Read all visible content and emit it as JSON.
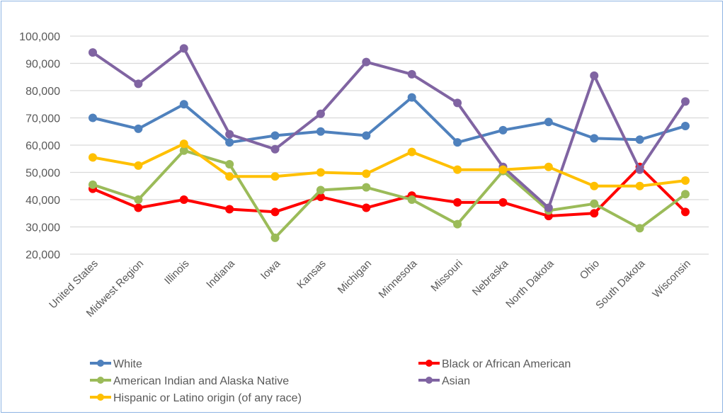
{
  "chart_data": {
    "type": "line",
    "title": "",
    "xlabel": "",
    "ylabel": "",
    "ylim": [
      20000,
      100000
    ],
    "yticks": [
      "20,000",
      "30,000",
      "40,000",
      "50,000",
      "60,000",
      "70,000",
      "80,000",
      "90,000",
      "100,000"
    ],
    "grid": true,
    "legend_position": "bottom",
    "categories": [
      "United States",
      "Midwest Region",
      "Illinois",
      "Indiana",
      "Iowa",
      "Kansas",
      "Michigan",
      "Minnesota",
      "Missouri",
      "Nebraska",
      "North Dakota",
      "Ohio",
      "South Dakota",
      "Wisconsin"
    ],
    "series": [
      {
        "name": "White",
        "color": "#4f81bd",
        "values": [
          70000,
          66000,
          75000,
          61000,
          63500,
          65000,
          63500,
          77500,
          61000,
          65500,
          68500,
          62500,
          62000,
          67000
        ]
      },
      {
        "name": "Black or African American",
        "color": "#ff0000",
        "values": [
          44000,
          37000,
          40000,
          36500,
          35500,
          41000,
          37000,
          41500,
          39000,
          39000,
          34000,
          35000,
          52000,
          35500
        ]
      },
      {
        "name": "American Indian and Alaska Native",
        "color": "#9bbb59",
        "values": [
          45500,
          40000,
          58000,
          53000,
          26000,
          43500,
          44500,
          40000,
          31000,
          50500,
          36000,
          38500,
          29500,
          42000
        ]
      },
      {
        "name": "Asian",
        "color": "#8064a2",
        "values": [
          94000,
          82500,
          95500,
          64000,
          58500,
          71500,
          90500,
          86000,
          75500,
          52000,
          37000,
          85500,
          51000,
          76000
        ]
      },
      {
        "name": "Hispanic or Latino origin (of any race)",
        "color": "#ffc000",
        "values": [
          55500,
          52500,
          60500,
          48500,
          48500,
          50000,
          49500,
          57500,
          51000,
          51000,
          52000,
          45000,
          45000,
          47000
        ]
      }
    ]
  }
}
